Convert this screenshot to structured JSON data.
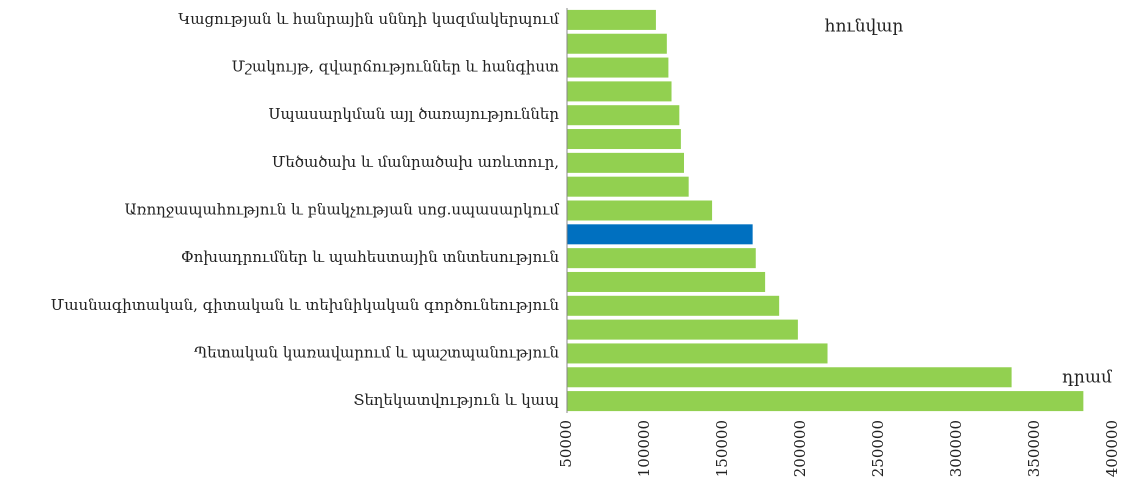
{
  "chart_data": {
    "type": "bar",
    "orientation": "horizontal",
    "categories": [
      "Կացության և հանրային սննդի կազմակերպում",
      null,
      "Մշակույթ, զվարճություններ և հանգիստ",
      null,
      "Սպասարկման այլ ծառայություններ",
      null,
      "Մեծածախ և մանրածախ առևտուր,",
      null,
      "Առողջապահություն և բնակչության սոց.սպասարկում",
      null,
      "Փոխադրումներ և պահեստային տնտեսություն",
      null,
      "Մասնագիտական, գիտական և տեխնիկական գործունեություն",
      null,
      "Պետական կառավարում և պաշտպանություն",
      null,
      "Տեղեկատվություն և կապ"
    ],
    "values": [
      107000,
      114000,
      115000,
      117000,
      122000,
      123000,
      125000,
      128000,
      143000,
      169000,
      171000,
      177000,
      186000,
      198000,
      217000,
      335000,
      381000
    ],
    "colors": [
      "#92d050",
      "#92d050",
      "#92d050",
      "#92d050",
      "#92d050",
      "#92d050",
      "#92d050",
      "#92d050",
      "#92d050",
      "#0070c0",
      "#92d050",
      "#92d050",
      "#92d050",
      "#92d050",
      "#92d050",
      "#92d050",
      "#92d050"
    ],
    "xlim": [
      50000,
      400000
    ],
    "xticks": [
      50000,
      100000,
      150000,
      200000,
      250000,
      300000,
      350000,
      400000
    ],
    "annotations": [
      "հունվար",
      "դրամ"
    ],
    "grid": false
  }
}
